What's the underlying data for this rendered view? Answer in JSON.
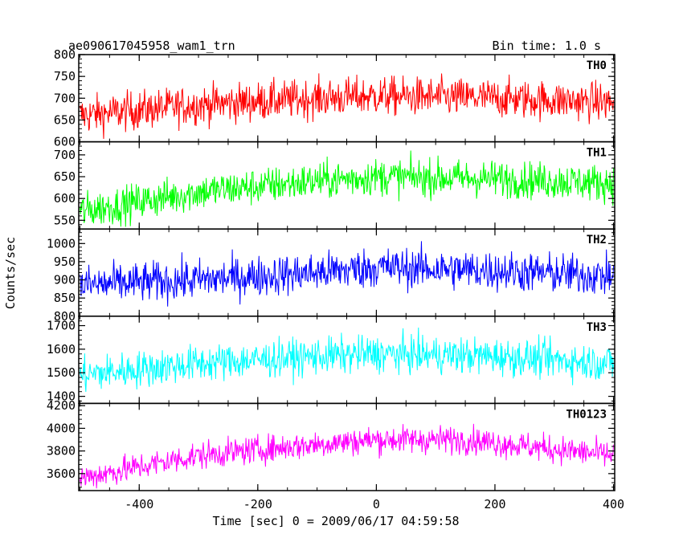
{
  "header": {
    "title": "ae090617045958_wam1_trn",
    "bin_time": "Bin time: 1.0 s"
  },
  "axes": {
    "xlabel": "Time [sec] 0 = 2009/06/17 04:59:58",
    "ylabel": "Counts/sec"
  },
  "chart_data": {
    "type": "line",
    "title": "ae090617045958_wam1_trn",
    "xlabel": "Time [sec] 0 = 2009/06/17 04:59:58",
    "ylabel": "Counts/sec",
    "xlim": [
      -502,
      402
    ],
    "x_ticks": [
      -400,
      -200,
      0,
      200,
      400
    ],
    "bin_time_s": 1.0,
    "grid": false,
    "series": [
      {
        "name": "TH0",
        "color": "#ff0000",
        "ylim": [
          600,
          800
        ],
        "y_ticks": [
          600,
          650,
          700,
          750,
          800
        ],
        "trend": [
          [
            -500,
            660
          ],
          [
            -300,
            685
          ],
          [
            -100,
            700
          ],
          [
            0,
            705
          ],
          [
            200,
            700
          ],
          [
            400,
            690
          ]
        ],
        "noise_amplitude": 40
      },
      {
        "name": "TH1",
        "color": "#00ff00",
        "ylim": [
          530,
          730
        ],
        "y_ticks": [
          550,
          600,
          650,
          700
        ],
        "trend": [
          [
            -500,
            570
          ],
          [
            -300,
            615
          ],
          [
            -100,
            640
          ],
          [
            0,
            650
          ],
          [
            200,
            645
          ],
          [
            400,
            635
          ]
        ],
        "noise_amplitude": 38
      },
      {
        "name": "TH2",
        "color": "#0000ff",
        "ylim": [
          800,
          1040
        ],
        "y_ticks": [
          800,
          850,
          900,
          950,
          1000
        ],
        "trend": [
          [
            -500,
            885
          ],
          [
            -300,
            900
          ],
          [
            -100,
            920
          ],
          [
            0,
            935
          ],
          [
            200,
            925
          ],
          [
            400,
            910
          ]
        ],
        "noise_amplitude": 50
      },
      {
        "name": "TH3",
        "color": "#00ffff",
        "ylim": [
          1370,
          1740
        ],
        "y_ticks": [
          1400,
          1500,
          1600,
          1700
        ],
        "trend": [
          [
            -500,
            1490
          ],
          [
            -300,
            1540
          ],
          [
            -100,
            1570
          ],
          [
            0,
            1580
          ],
          [
            200,
            1570
          ],
          [
            400,
            1540
          ]
        ],
        "noise_amplitude": 70
      },
      {
        "name": "TH0123",
        "color": "#ff00ff",
        "ylim": [
          3450,
          4220
        ],
        "y_ticks": [
          3600,
          3800,
          4000,
          4200
        ],
        "trend": [
          [
            -500,
            3560
          ],
          [
            -300,
            3760
          ],
          [
            -100,
            3860
          ],
          [
            0,
            3900
          ],
          [
            150,
            3900
          ],
          [
            400,
            3760
          ]
        ],
        "noise_amplitude": 110
      }
    ]
  }
}
